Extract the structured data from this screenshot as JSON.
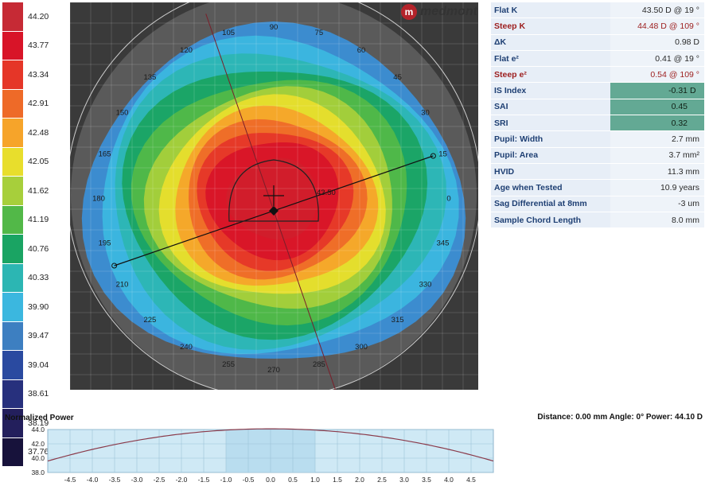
{
  "brand": {
    "name": "medmont",
    "logo_letter": "m"
  },
  "colors": {
    "scale_colors": [
      "#c62a35",
      "#d81428",
      "#e53628",
      "#ee6a28",
      "#f6a42a",
      "#e8de2c",
      "#a7cf3b",
      "#52b848",
      "#1aa463",
      "#2cb6b3",
      "#3bb7df",
      "#3d7fc1",
      "#2a4aa0",
      "#27307d",
      "#231f5c",
      "#17123b"
    ],
    "header_text": "#1e3f73",
    "steep_text": "#9c1d1d",
    "highlight_bg": "#63a994"
  },
  "scale": {
    "values": [
      "44.20",
      "43.77",
      "43.34",
      "42.91",
      "42.48",
      "42.05",
      "41.62",
      "41.19",
      "40.76",
      "40.33",
      "39.90",
      "39.47",
      "39.04",
      "38.61",
      "38.19",
      "37.76"
    ]
  },
  "map": {
    "axis_labels": [
      "90",
      "75",
      "60",
      "45",
      "30",
      "15",
      "0",
      "345",
      "330",
      "315",
      "300",
      "285",
      "270",
      "255",
      "240",
      "225",
      "210",
      "195",
      "180",
      "165",
      "150",
      "135",
      "120",
      "105"
    ],
    "chord_value": "43.50"
  },
  "info": {
    "rows": [
      {
        "label": "Flat K",
        "value": "43.50 D @ 19 °"
      },
      {
        "label": "Steep K",
        "value": "44.48 D @ 109 °"
      },
      {
        "label": "ΔK",
        "value": "0.98 D"
      },
      {
        "label": "Flat e²",
        "value": "0.41 @ 19 °"
      },
      {
        "label": "Steep e²",
        "value": "0.54 @ 109 °"
      },
      {
        "label": "IS Index",
        "value": "-0.31",
        "unit": "D"
      },
      {
        "label": "SAI",
        "value": "0.45",
        "unit": ""
      },
      {
        "label": "SRI",
        "value": "0.32",
        "unit": ""
      },
      {
        "label": "Pupil: Width",
        "value": "2.7 mm"
      },
      {
        "label": "Pupil: Area",
        "value": "3.7 mm²"
      },
      {
        "label": "HVID",
        "value": "11.3 mm"
      },
      {
        "label": "Age when Tested",
        "value": "10.9 years"
      },
      {
        "label": "Sag Differential at 8mm",
        "value": "-3 um"
      },
      {
        "label": "Sample Chord Length",
        "value": "8.0 mm"
      }
    ]
  },
  "profile": {
    "title": "Normalized Power",
    "readout": "Distance: 0.00 mm Angle: 0° Power:  44.10 D",
    "y_ticks": [
      "44.0",
      "42.0",
      "40.0",
      "38.0"
    ],
    "x_ticks": [
      "-4.5",
      "-4.0",
      "-3.5",
      "-3.0",
      "-2.5",
      "-2.0",
      "-1.5",
      "-1.0",
      "-0.5",
      "0.0",
      "0.5",
      "1.0",
      "1.5",
      "2.0",
      "2.5",
      "3.0",
      "3.5",
      "4.0",
      "4.5"
    ]
  }
}
